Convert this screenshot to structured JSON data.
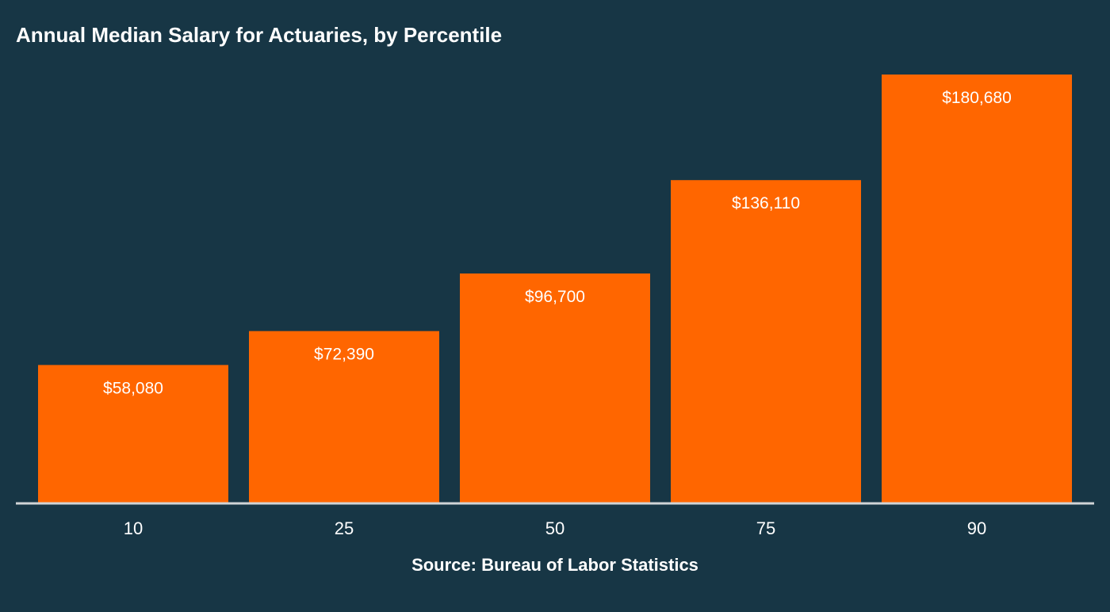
{
  "colors": {
    "background": "#173645",
    "bar": "#ff6600",
    "text": "#ffffff",
    "axis": "#d0d4d6"
  },
  "chart_data": {
    "type": "bar",
    "title": "Annual Median Salary for Actuaries, by Percentile",
    "categories": [
      "10",
      "25",
      "50",
      "75",
      "90"
    ],
    "values": [
      58080,
      72390,
      96700,
      136110,
      180680
    ],
    "data_labels": [
      "$58,080",
      "$72,390",
      "$96,700",
      "$136,110",
      "$180,680"
    ],
    "xlabel": "Source: Bureau of Labor Statistics",
    "ylabel": "",
    "ylim": [
      0,
      180680
    ],
    "grid": false,
    "legend": "none"
  }
}
